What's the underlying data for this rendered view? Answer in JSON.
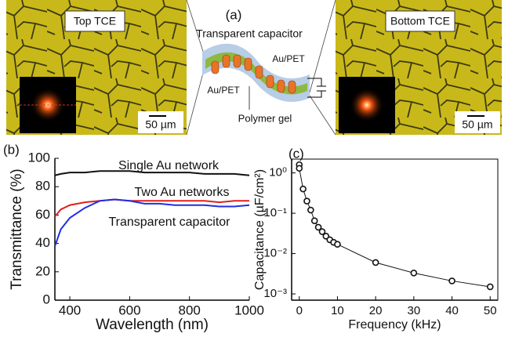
{
  "panel_a": {
    "label": "(a)",
    "left_image": {
      "caption": "Top TCE",
      "scale": "50 µm"
    },
    "right_image": {
      "caption": "Bottom TCE",
      "scale": "50 µm"
    },
    "diagram": {
      "title": "Transparent capacitor",
      "top_electrode": "Au/PET",
      "bottom_electrode": "Au/PET",
      "electrolyte": "Polymer gel"
    }
  },
  "chart_data": [
    {
      "type": "line",
      "panel": "(b)",
      "x_label": "Wavelength (nm)",
      "y_label": "Transmittance (%)",
      "x": [
        350,
        370,
        400,
        450,
        500,
        550,
        600,
        650,
        700,
        750,
        800,
        850,
        900,
        950,
        1000
      ],
      "series": [
        {
          "name": "Single Au network",
          "color": "#111111",
          "values": [
            88,
            89,
            90,
            90,
            91,
            91,
            91,
            90,
            90,
            90,
            90,
            89,
            89,
            89,
            88
          ]
        },
        {
          "name": "Two Au networks",
          "color": "#e0201b",
          "values": [
            59,
            64,
            67,
            69,
            70,
            71,
            70,
            70,
            70,
            70,
            70,
            70,
            69,
            70,
            70
          ]
        },
        {
          "name": "Transparent capacitor",
          "color": "#1f2ee6",
          "values": [
            38,
            50,
            58,
            65,
            70,
            71,
            70,
            68,
            68,
            67,
            67,
            67,
            66,
            66,
            67
          ]
        }
      ],
      "xlim": [
        350,
        1000
      ],
      "xticks": [
        400,
        600,
        800,
        1000
      ],
      "ylim": [
        0,
        100
      ],
      "yticks": [
        0,
        20,
        40,
        60,
        80,
        100
      ]
    },
    {
      "type": "scatter-line",
      "panel": "(c)",
      "x_label": "Frequency (kHz)",
      "y_label": "Capacitance (µF/cm²)",
      "log_y": true,
      "x": [
        0,
        0,
        1,
        2,
        3,
        4,
        5,
        6,
        7,
        8,
        9,
        10,
        20,
        30,
        40,
        50
      ],
      "series": [
        {
          "color": "#111111",
          "values": [
            1.6,
            1.3,
            0.4,
            0.2,
            0.12,
            0.065,
            0.045,
            0.035,
            0.027,
            0.022,
            0.019,
            0.017,
            0.006,
            0.0033,
            0.0021,
            0.0015
          ]
        }
      ],
      "xlim": [
        -2,
        52
      ],
      "xticks": [
        0,
        10,
        20,
        30,
        40,
        50
      ],
      "ylim": [
        0.0007,
        2.2
      ],
      "yticks": [
        {
          "value": 0.001,
          "label": "10⁻³"
        },
        {
          "value": 0.01,
          "label": "10⁻²"
        },
        {
          "value": 0.1,
          "label": "10⁻¹"
        },
        {
          "value": 1,
          "label": "10⁰"
        }
      ]
    }
  ]
}
